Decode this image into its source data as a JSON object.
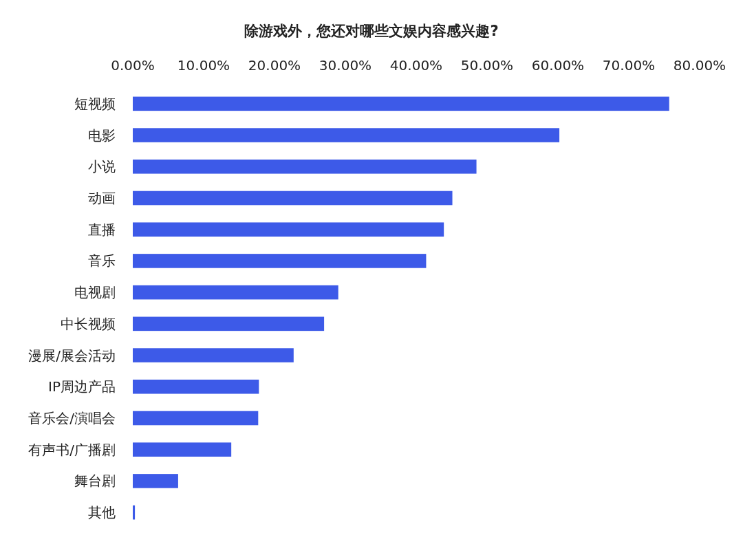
{
  "chart_data": {
    "type": "bar",
    "orientation": "horizontal",
    "title": "除游戏外，您还对哪些文娱内容感兴趣?",
    "categories": [
      "短视频",
      "电影",
      "小说",
      "动画",
      "直播",
      "音乐",
      "电视剧",
      "中长视频",
      "漫展/展会活动",
      "IP周边产品",
      "音乐会/演唱会",
      "有声书/广播剧",
      "舞台剧",
      "其他"
    ],
    "values": [
      75.7,
      60.2,
      48.5,
      45.1,
      43.9,
      41.4,
      29,
      27,
      22.7,
      17.8,
      17.7,
      13.9,
      6.4,
      0.3
    ],
    "color": "#3d5ae8",
    "xlim": [
      0,
      80
    ],
    "xticks": [
      {
        "value": 0,
        "label": "0.00%"
      },
      {
        "value": 10,
        "label": "10.00%"
      },
      {
        "value": 20,
        "label": "20.00%"
      },
      {
        "value": 30,
        "label": "30.00%"
      },
      {
        "value": 40,
        "label": "40.00%"
      },
      {
        "value": 50,
        "label": "50.00%"
      },
      {
        "value": 60,
        "label": "60.00%"
      },
      {
        "value": 70,
        "label": "70.00%"
      },
      {
        "value": 80,
        "label": "80.00%"
      }
    ]
  }
}
